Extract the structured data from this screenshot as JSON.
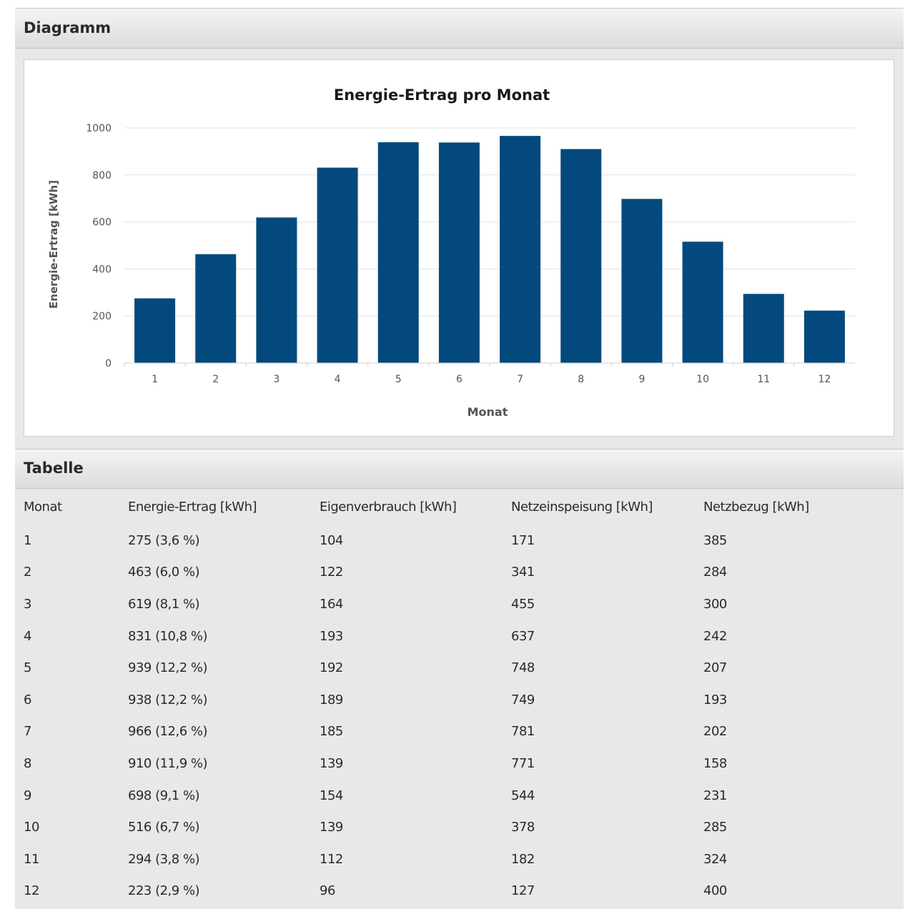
{
  "diagram_section": {
    "title": "Diagramm"
  },
  "table_section": {
    "title": "Tabelle"
  },
  "table": {
    "headers": [
      "Monat",
      "Energie-Ertrag [kWh]",
      "Eigenverbrauch [kWh]",
      "Netzeinspeisung [kWh]",
      "Netzbezug [kWh]"
    ],
    "rows": [
      [
        "1",
        "275 (3,6 %)",
        "104",
        "171",
        "385"
      ],
      [
        "2",
        "463 (6,0 %)",
        "122",
        "341",
        "284"
      ],
      [
        "3",
        "619 (8,1 %)",
        "164",
        "455",
        "300"
      ],
      [
        "4",
        "831 (10,8 %)",
        "193",
        "637",
        "242"
      ],
      [
        "5",
        "939 (12,2 %)",
        "192",
        "748",
        "207"
      ],
      [
        "6",
        "938 (12,2 %)",
        "189",
        "749",
        "193"
      ],
      [
        "7",
        "966 (12,6 %)",
        "185",
        "781",
        "202"
      ],
      [
        "8",
        "910 (11,9 %)",
        "139",
        "771",
        "158"
      ],
      [
        "9",
        "698 (9,1 %)",
        "154",
        "544",
        "231"
      ],
      [
        "10",
        "516 (6,7 %)",
        "139",
        "378",
        "285"
      ],
      [
        "11",
        "294 (3,8 %)",
        "112",
        "182",
        "324"
      ],
      [
        "12",
        "223 (2,9 %)",
        "96",
        "127",
        "400"
      ]
    ]
  },
  "chart_data": {
    "type": "bar",
    "title": "Energie-Ertrag pro Monat",
    "xlabel": "Monat",
    "ylabel": "Energie-Ertrag [kWh]",
    "categories": [
      "1",
      "2",
      "3",
      "4",
      "5",
      "6",
      "7",
      "8",
      "9",
      "10",
      "11",
      "12"
    ],
    "values": [
      275,
      463,
      619,
      831,
      939,
      938,
      966,
      910,
      698,
      516,
      294,
      223
    ],
    "ylim": [
      0,
      1000
    ],
    "yticks": [
      0,
      200,
      400,
      600,
      800,
      1000
    ],
    "grid": true,
    "legend": "none",
    "bar_color": "#03497d"
  }
}
